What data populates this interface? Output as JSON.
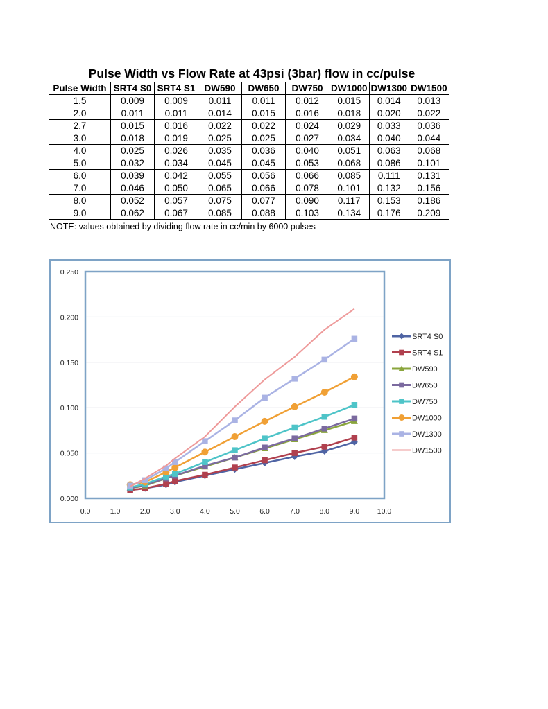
{
  "title": "Pulse Width vs Flow Rate at 43psi (3bar) flow in cc/pulse",
  "table": {
    "headers": [
      "Pulse Width",
      "SRT4 S0",
      "SRT4 S1",
      "DW590",
      "DW650",
      "DW750",
      "DW1000",
      "DW1300",
      "DW1500"
    ],
    "rows": [
      [
        "1.5",
        "0.009",
        "0.009",
        "0.011",
        "0.011",
        "0.012",
        "0.015",
        "0.014",
        "0.013"
      ],
      [
        "2.0",
        "0.011",
        "0.011",
        "0.014",
        "0.015",
        "0.016",
        "0.018",
        "0.020",
        "0.022"
      ],
      [
        "2.7",
        "0.015",
        "0.016",
        "0.022",
        "0.022",
        "0.024",
        "0.029",
        "0.033",
        "0.036"
      ],
      [
        "3.0",
        "0.018",
        "0.019",
        "0.025",
        "0.025",
        "0.027",
        "0.034",
        "0.040",
        "0.044"
      ],
      [
        "4.0",
        "0.025",
        "0.026",
        "0.035",
        "0.036",
        "0.040",
        "0.051",
        "0.063",
        "0.068"
      ],
      [
        "5.0",
        "0.032",
        "0.034",
        "0.045",
        "0.045",
        "0.053",
        "0.068",
        "0.086",
        "0.101"
      ],
      [
        "6.0",
        "0.039",
        "0.042",
        "0.055",
        "0.056",
        "0.066",
        "0.085",
        "0.111",
        "0.131"
      ],
      [
        "7.0",
        "0.046",
        "0.050",
        "0.065",
        "0.066",
        "0.078",
        "0.101",
        "0.132",
        "0.156"
      ],
      [
        "8.0",
        "0.052",
        "0.057",
        "0.075",
        "0.077",
        "0.090",
        "0.117",
        "0.153",
        "0.186"
      ],
      [
        "9.0",
        "0.062",
        "0.067",
        "0.085",
        "0.088",
        "0.103",
        "0.134",
        "0.176",
        "0.209"
      ]
    ]
  },
  "note": "NOTE: values obtained by dividing flow rate in cc/min by 6000 pulses",
  "chart_data": {
    "type": "line",
    "x": [
      1.5,
      2.0,
      2.7,
      3.0,
      4.0,
      5.0,
      6.0,
      7.0,
      8.0,
      9.0
    ],
    "xlim": [
      0,
      10
    ],
    "ylim": [
      0,
      0.25
    ],
    "xticks": [
      "0.0",
      "1.0",
      "2.0",
      "3.0",
      "4.0",
      "5.0",
      "6.0",
      "7.0",
      "8.0",
      "9.0",
      "10.0"
    ],
    "yticks": [
      "0.000",
      "0.050",
      "0.100",
      "0.150",
      "0.200",
      "0.250"
    ],
    "grid": "horizontal",
    "legend": "right",
    "series": [
      {
        "name": "SRT4 S0",
        "color": "#4f64a4",
        "marker": "diamond",
        "values": [
          0.009,
          0.011,
          0.015,
          0.018,
          0.025,
          0.032,
          0.039,
          0.046,
          0.052,
          0.062
        ]
      },
      {
        "name": "SRT4 S1",
        "color": "#b0404e",
        "marker": "square",
        "values": [
          0.009,
          0.011,
          0.016,
          0.019,
          0.026,
          0.034,
          0.042,
          0.05,
          0.057,
          0.067
        ]
      },
      {
        "name": "DW590",
        "color": "#8aa53c",
        "marker": "triangle",
        "values": [
          0.011,
          0.014,
          0.022,
          0.025,
          0.035,
          0.045,
          0.055,
          0.065,
          0.075,
          0.085
        ]
      },
      {
        "name": "DW650",
        "color": "#7b6a9f",
        "marker": "square",
        "values": [
          0.011,
          0.015,
          0.022,
          0.025,
          0.036,
          0.045,
          0.056,
          0.066,
          0.077,
          0.088
        ]
      },
      {
        "name": "DW750",
        "color": "#4ec4c8",
        "marker": "square",
        "values": [
          0.012,
          0.016,
          0.024,
          0.027,
          0.04,
          0.053,
          0.066,
          0.078,
          0.09,
          0.103
        ]
      },
      {
        "name": "DW1000",
        "color": "#f0a035",
        "marker": "circle",
        "values": [
          0.015,
          0.018,
          0.029,
          0.034,
          0.051,
          0.068,
          0.085,
          0.101,
          0.117,
          0.134
        ]
      },
      {
        "name": "DW1300",
        "color": "#aab3e4",
        "marker": "square",
        "values": [
          0.014,
          0.02,
          0.033,
          0.04,
          0.063,
          0.086,
          0.111,
          0.132,
          0.153,
          0.176
        ]
      },
      {
        "name": "DW1500",
        "color": "#ee9a9a",
        "marker": "none",
        "values": [
          0.013,
          0.022,
          0.036,
          0.044,
          0.068,
          0.101,
          0.131,
          0.156,
          0.186,
          0.209
        ]
      }
    ]
  }
}
